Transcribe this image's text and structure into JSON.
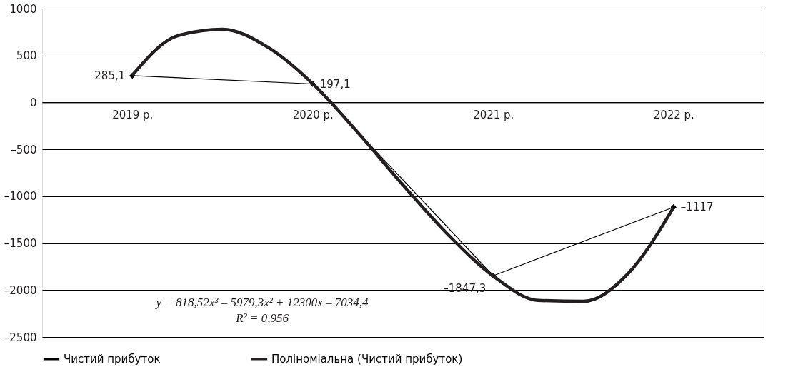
{
  "chart_data": {
    "type": "line",
    "x": [
      2019,
      2020,
      2021,
      2022
    ],
    "xlim": [
      2018.5,
      2022.5
    ],
    "xticks": [
      {
        "value": 2019,
        "label": "2019 р."
      },
      {
        "value": 2020,
        "label": "2020 р."
      },
      {
        "value": 2021,
        "label": "2021 р."
      },
      {
        "value": 2022,
        "label": "2022 р."
      }
    ],
    "ylim": [
      -2500,
      1000
    ],
    "yticks": [
      {
        "value": -2500,
        "label": "–2500"
      },
      {
        "value": -2000,
        "label": "–2000"
      },
      {
        "value": -1500,
        "label": "–1500"
      },
      {
        "value": -1000,
        "label": "–1000"
      },
      {
        "value": -500,
        "label": "–500"
      },
      0,
      500,
      1000
    ],
    "grid": "y",
    "legend": "bottom",
    "marker": "diamond",
    "series": [
      {
        "name": "Чистий прибуток",
        "color": "#000000",
        "values": [
          285.1,
          197.1,
          -1847.3,
          -1117
        ],
        "value_labels": [
          "285,1",
          "197,1",
          "–1847,3",
          "–1117"
        ]
      },
      {
        "name": "Поліноміальна (Чистий прибуток)",
        "type": "line",
        "marker": "none",
        "color": "#231f20",
        "x": [
          2019,
          2019.25,
          2019.5,
          2019.75,
          2020,
          2020.25,
          2020.5,
          2020.75,
          2021,
          2021.25,
          2021.5,
          2021.75,
          2022
        ],
        "values": [
          290,
          710,
          780,
          590,
          200,
          -320,
          -880,
          -1410,
          -1850,
          -2110,
          -2120,
          -1820,
          -1120
        ]
      }
    ],
    "annotations": [
      "y = 818,52x³ – 5979,3x² + 12300x – 7034,4",
      "R² = 0,956"
    ]
  }
}
